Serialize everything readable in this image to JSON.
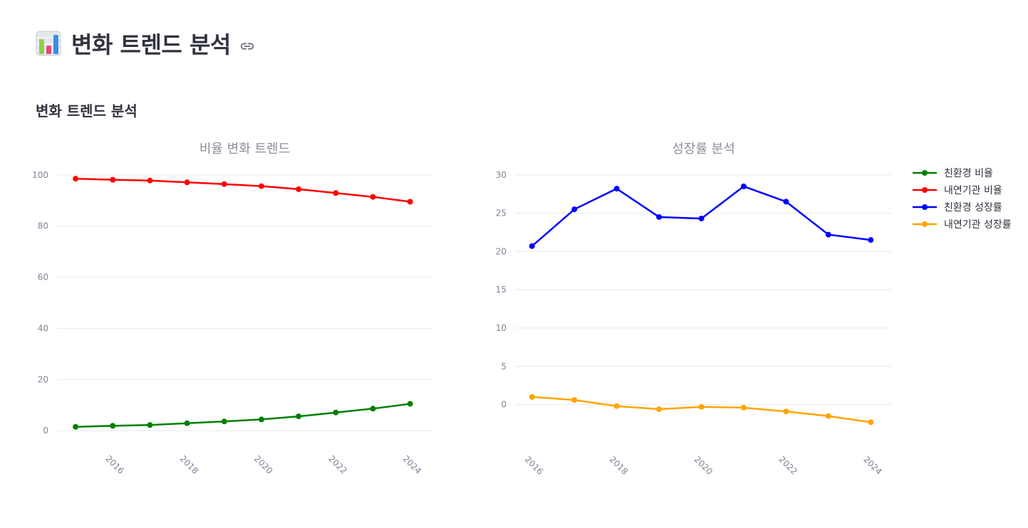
{
  "page": {
    "title": "변화 트렌드 분석",
    "section_heading": "변화 트렌드 분석"
  },
  "icons": {
    "title_icon": "bar-chart-emoji-icon",
    "anchor_icon": "link-icon"
  },
  "colors": {
    "green": "#008000",
    "red": "#ff0000",
    "blue": "#0000ff",
    "orange": "#ffa500",
    "grid": "#e8eaef",
    "tick": "#808495",
    "chart_title": "#8c8f9a"
  },
  "chart_data": [
    {
      "type": "line",
      "title": "비율 변화 트렌드",
      "xlabel": "",
      "ylabel": "",
      "x": [
        2015,
        2016,
        2017,
        2018,
        2019,
        2020,
        2021,
        2022,
        2023,
        2024
      ],
      "x_ticks": [
        "2016",
        "2018",
        "2020",
        "2022",
        "2024"
      ],
      "x_tick_values": [
        2016,
        2018,
        2020,
        2022,
        2024
      ],
      "y_ticks": [
        "0",
        "20",
        "40",
        "60",
        "80",
        "100"
      ],
      "y_tick_values": [
        0,
        20,
        40,
        60,
        80,
        100
      ],
      "xlim": [
        2014.5,
        2024.6
      ],
      "ylim": [
        -3,
        103
      ],
      "grid": true,
      "series": [
        {
          "name": "친환경 비율",
          "color": "#008000",
          "values": [
            1.5,
            1.9,
            2.2,
            2.9,
            3.6,
            4.4,
            5.6,
            7.1,
            8.6,
            10.5
          ]
        },
        {
          "name": "내연기관 비율",
          "color": "#ff0000",
          "values": [
            98.5,
            98.1,
            97.8,
            97.1,
            96.4,
            95.6,
            94.4,
            92.9,
            91.4,
            89.5
          ]
        }
      ]
    },
    {
      "type": "line",
      "title": "성장률 분석",
      "xlabel": "",
      "ylabel": "",
      "x": [
        2016,
        2017,
        2018,
        2019,
        2020,
        2021,
        2022,
        2023,
        2024
      ],
      "x_ticks": [
        "2016",
        "2018",
        "2020",
        "2022",
        "2024"
      ],
      "x_tick_values": [
        2016,
        2018,
        2020,
        2022,
        2024
      ],
      "y_ticks": [
        "0",
        "5",
        "10",
        "15",
        "20",
        "25",
        "30"
      ],
      "y_tick_values": [
        0,
        5,
        10,
        15,
        20,
        25,
        30
      ],
      "xlim": [
        2015.6,
        2024.5
      ],
      "ylim": [
        -4.5,
        31
      ],
      "grid": true,
      "legend_position": "top-right",
      "legend": [
        "친환경 비율",
        "내연기관 비율",
        "친환경 성장률",
        "내연기관 성장률"
      ],
      "series": [
        {
          "name": "친환경 성장률",
          "color": "#0000ff",
          "values": [
            20.7,
            25.5,
            28.2,
            24.5,
            24.3,
            28.5,
            26.5,
            22.2,
            21.5
          ]
        },
        {
          "name": "내연기관 성장률",
          "color": "#ffa500",
          "values": [
            1.0,
            0.6,
            -0.2,
            -0.6,
            -0.3,
            -0.4,
            -0.9,
            -1.5,
            -2.3
          ]
        }
      ]
    }
  ]
}
